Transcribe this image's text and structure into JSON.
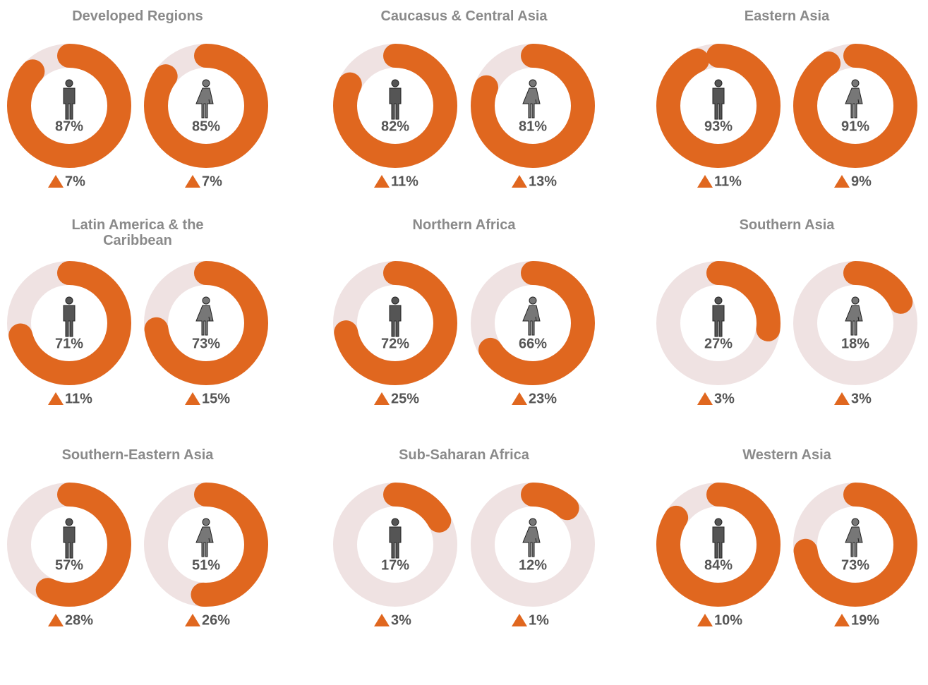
{
  "chart_data": [
    {
      "type": "donut",
      "title": "Developed Regions",
      "values": [
        87,
        85
      ],
      "value_labels": [
        "87%",
        "85%"
      ],
      "changes": [
        7,
        7
      ],
      "change_labels": [
        "7%",
        "7%"
      ],
      "color": "#e0671f",
      "track_color": "#efe2e2"
    },
    {
      "type": "donut",
      "title": "Caucasus &  Central Asia",
      "values": [
        82,
        81
      ],
      "value_labels": [
        "82%",
        "81%"
      ],
      "changes": [
        11,
        13
      ],
      "change_labels": [
        "11%",
        "13%"
      ],
      "color": "#e0671f",
      "track_color": "#efe2e2"
    },
    {
      "type": "donut",
      "title": "Eastern Asia",
      "values": [
        93,
        91
      ],
      "value_labels": [
        "93%",
        "91%"
      ],
      "changes": [
        11,
        9
      ],
      "change_labels": [
        "11%",
        "9%"
      ],
      "color": "#e0671f",
      "track_color": "#efe2e2"
    },
    {
      "type": "donut",
      "title": "Latin America  & the Caribbean",
      "values": [
        71,
        73
      ],
      "value_labels": [
        "71%",
        "73%"
      ],
      "changes": [
        11,
        15
      ],
      "change_labels": [
        "11%",
        "15%"
      ],
      "color": "#e0671f",
      "track_color": "#efe2e2"
    },
    {
      "type": "donut",
      "title": "Northern Africa",
      "values": [
        72,
        66
      ],
      "value_labels": [
        "72%",
        "66%"
      ],
      "changes": [
        25,
        23
      ],
      "change_labels": [
        "25%",
        "23%"
      ],
      "color": "#e0671f",
      "track_color": "#efe2e2"
    },
    {
      "type": "donut",
      "title": "Southern Asia",
      "values": [
        27,
        18
      ],
      "value_labels": [
        "27%",
        "18%"
      ],
      "changes": [
        3,
        3
      ],
      "change_labels": [
        "3%",
        "3%"
      ],
      "color": "#e0671f",
      "track_color": "#efe2e2"
    },
    {
      "type": "donut",
      "title": "Southern-Eastern Asia",
      "values": [
        57,
        51
      ],
      "value_labels": [
        "57%",
        "51%"
      ],
      "changes": [
        28,
        26
      ],
      "change_labels": [
        "28%",
        "26%"
      ],
      "color": "#e0671f",
      "track_color": "#efe2e2"
    },
    {
      "type": "donut",
      "title": "Sub-Saharan Africa",
      "values": [
        17,
        12
      ],
      "value_labels": [
        "17%",
        "12%"
      ],
      "changes": [
        3,
        1
      ],
      "change_labels": [
        "3%",
        "1%"
      ],
      "color": "#e0671f",
      "track_color": "#efe2e2"
    },
    {
      "type": "donut",
      "title": "Western Asia",
      "values": [
        84,
        73
      ],
      "value_labels": [
        "84%",
        "73%"
      ],
      "changes": [
        10,
        19
      ],
      "change_labels": [
        "10%",
        "19%"
      ],
      "color": "#e0671f",
      "track_color": "#efe2e2"
    }
  ]
}
